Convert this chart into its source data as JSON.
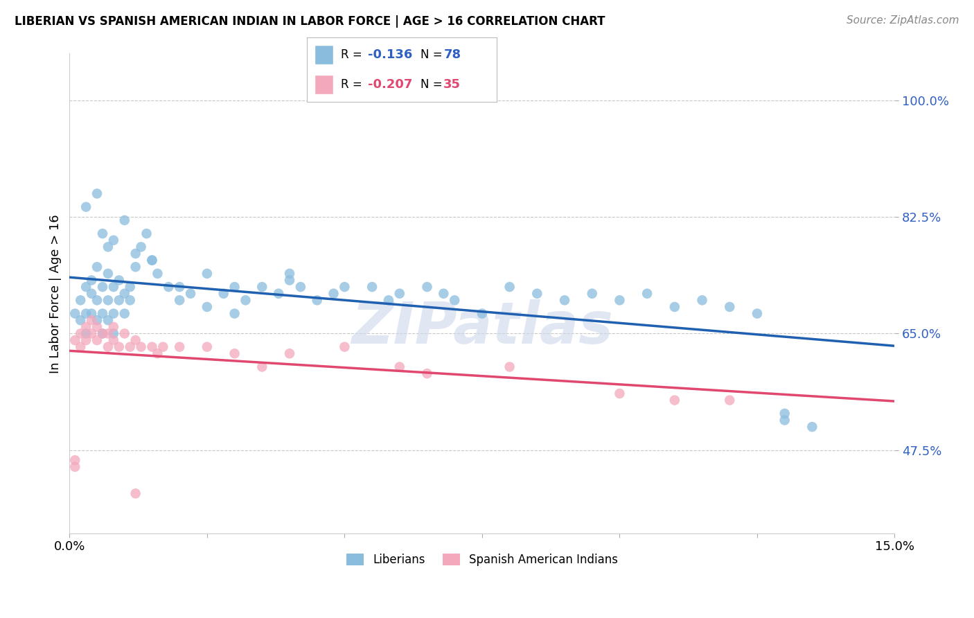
{
  "title": "LIBERIAN VS SPANISH AMERICAN INDIAN IN LABOR FORCE | AGE > 16 CORRELATION CHART",
  "source": "Source: ZipAtlas.com",
  "ylabel": "In Labor Force | Age > 16",
  "xlim": [
    0.0,
    0.15
  ],
  "ylim": [
    0.35,
    1.07
  ],
  "ytick_vals": [
    0.475,
    0.65,
    0.825,
    1.0
  ],
  "ytick_labels": [
    "47.5%",
    "65.0%",
    "82.5%",
    "100.0%"
  ],
  "xtick_vals": [
    0.0,
    0.025,
    0.05,
    0.075,
    0.1,
    0.125,
    0.15
  ],
  "xtick_labels": [
    "0.0%",
    "",
    "",
    "",
    "",
    "",
    "15.0%"
  ],
  "blue_R": "-0.136",
  "blue_N": "78",
  "pink_R": "-0.207",
  "pink_N": "35",
  "blue_color": "#8abcde",
  "pink_color": "#f4a8bc",
  "blue_line_color": "#2060b0",
  "pink_line_color": "#e04870",
  "watermark": "ZIPatlas",
  "background_color": "#ffffff",
  "grid_color": "#c8c8c8",
  "blue_x": [
    0.001,
    0.002,
    0.002,
    0.003,
    0.003,
    0.003,
    0.004,
    0.004,
    0.004,
    0.005,
    0.005,
    0.005,
    0.006,
    0.006,
    0.006,
    0.007,
    0.007,
    0.007,
    0.008,
    0.008,
    0.008,
    0.009,
    0.009,
    0.01,
    0.01,
    0.011,
    0.011,
    0.012,
    0.013,
    0.014,
    0.015,
    0.016,
    0.018,
    0.02,
    0.022,
    0.025,
    0.028,
    0.03,
    0.032,
    0.035,
    0.038,
    0.04,
    0.042,
    0.045,
    0.048,
    0.05,
    0.055,
    0.058,
    0.06,
    0.065,
    0.068,
    0.07,
    0.075,
    0.08,
    0.085,
    0.09,
    0.095,
    0.1,
    0.105,
    0.11,
    0.115,
    0.12,
    0.125,
    0.13,
    0.135,
    0.003,
    0.005,
    0.006,
    0.007,
    0.008,
    0.01,
    0.012,
    0.015,
    0.02,
    0.025,
    0.03,
    0.04,
    0.13
  ],
  "blue_y": [
    0.68,
    0.7,
    0.67,
    0.72,
    0.65,
    0.68,
    0.73,
    0.71,
    0.68,
    0.75,
    0.7,
    0.67,
    0.72,
    0.68,
    0.65,
    0.74,
    0.7,
    0.67,
    0.72,
    0.68,
    0.65,
    0.73,
    0.7,
    0.71,
    0.68,
    0.72,
    0.7,
    0.75,
    0.78,
    0.8,
    0.76,
    0.74,
    0.72,
    0.7,
    0.71,
    0.69,
    0.71,
    0.68,
    0.7,
    0.72,
    0.71,
    0.73,
    0.72,
    0.7,
    0.71,
    0.72,
    0.72,
    0.7,
    0.71,
    0.72,
    0.71,
    0.7,
    0.68,
    0.72,
    0.71,
    0.7,
    0.71,
    0.7,
    0.71,
    0.69,
    0.7,
    0.69,
    0.68,
    0.52,
    0.51,
    0.84,
    0.86,
    0.8,
    0.78,
    0.79,
    0.82,
    0.77,
    0.76,
    0.72,
    0.74,
    0.72,
    0.74,
    0.53
  ],
  "pink_x": [
    0.001,
    0.002,
    0.002,
    0.003,
    0.003,
    0.004,
    0.004,
    0.005,
    0.005,
    0.006,
    0.007,
    0.007,
    0.008,
    0.008,
    0.009,
    0.01,
    0.011,
    0.012,
    0.013,
    0.015,
    0.016,
    0.017,
    0.02,
    0.025,
    0.03,
    0.035,
    0.04,
    0.05,
    0.06,
    0.065,
    0.08,
    0.1,
    0.11,
    0.12,
    0.001
  ],
  "pink_y": [
    0.64,
    0.63,
    0.65,
    0.64,
    0.66,
    0.65,
    0.67,
    0.64,
    0.66,
    0.65,
    0.63,
    0.65,
    0.64,
    0.66,
    0.63,
    0.65,
    0.63,
    0.64,
    0.63,
    0.63,
    0.62,
    0.63,
    0.63,
    0.63,
    0.62,
    0.6,
    0.62,
    0.63,
    0.6,
    0.59,
    0.6,
    0.56,
    0.55,
    0.55,
    0.45
  ]
}
